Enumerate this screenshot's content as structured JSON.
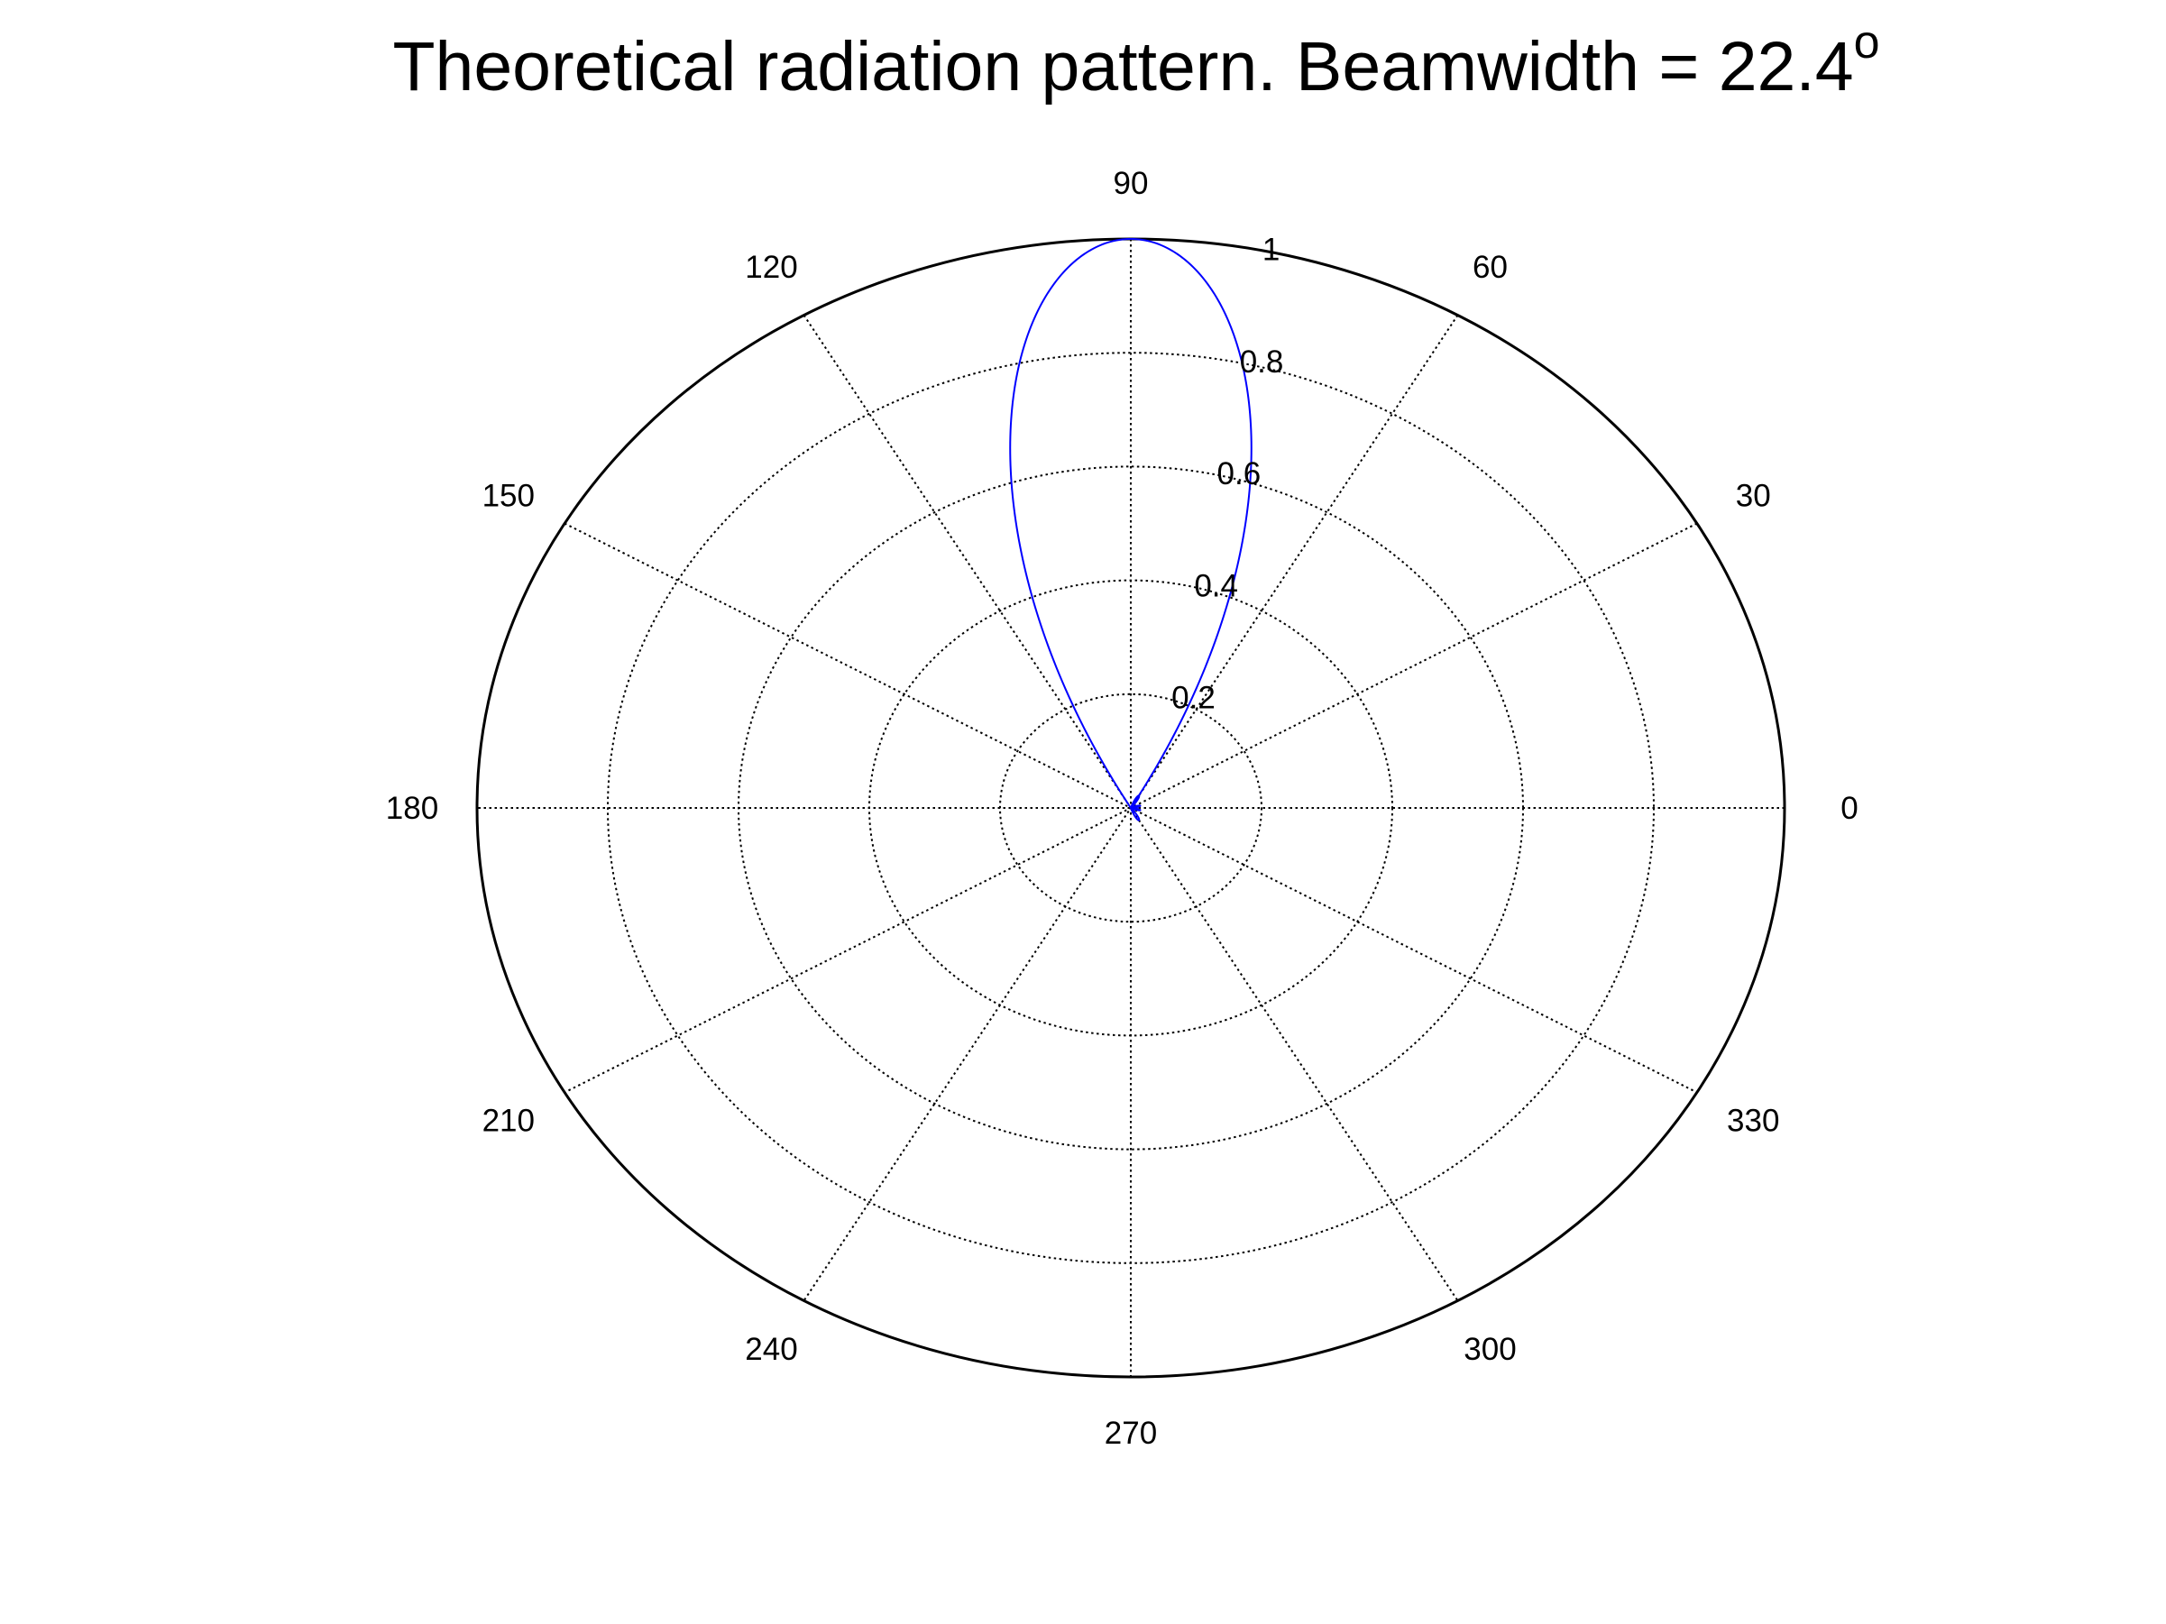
{
  "chart_data": {
    "type": "polar",
    "title": "Theoretical radiation pattern. Beamwidth = 22.4",
    "title_superscript": "o",
    "r_max": 1,
    "r_ticks": [
      0.2,
      0.4,
      0.6,
      0.8,
      1
    ],
    "r_tick_labels": [
      "0.2",
      "0.4",
      "0.6",
      "0.8",
      "1"
    ],
    "angle_ticks": [
      0,
      30,
      60,
      90,
      120,
      150,
      180,
      210,
      240,
      270,
      300,
      330
    ],
    "angle_tick_labels": [
      "0",
      "30",
      "60",
      "90",
      "120",
      "150",
      "180",
      "210",
      "240",
      "270",
      "300",
      "330"
    ],
    "grid": true,
    "series": [
      {
        "color": "#0000ff",
        "beam_direction_deg": 90,
        "beamwidth_deg": 22.4,
        "peak": 1,
        "samples": [
          {
            "theta": 90,
            "r": 1.0
          },
          {
            "theta": 86,
            "r": 0.99
          },
          {
            "theta": 82,
            "r": 0.95
          },
          {
            "theta": 79,
            "r": 0.9
          },
          {
            "theta": 76,
            "r": 0.8
          },
          {
            "theta": 73,
            "r": 0.7
          },
          {
            "theta": 71,
            "r": 0.6
          },
          {
            "theta": 69,
            "r": 0.5
          },
          {
            "theta": 67,
            "r": 0.4
          },
          {
            "theta": 65,
            "r": 0.3
          },
          {
            "theta": 63,
            "r": 0.2
          },
          {
            "theta": 61,
            "r": 0.1
          },
          {
            "theta": 60,
            "r": 0.0
          }
        ]
      }
    ]
  }
}
